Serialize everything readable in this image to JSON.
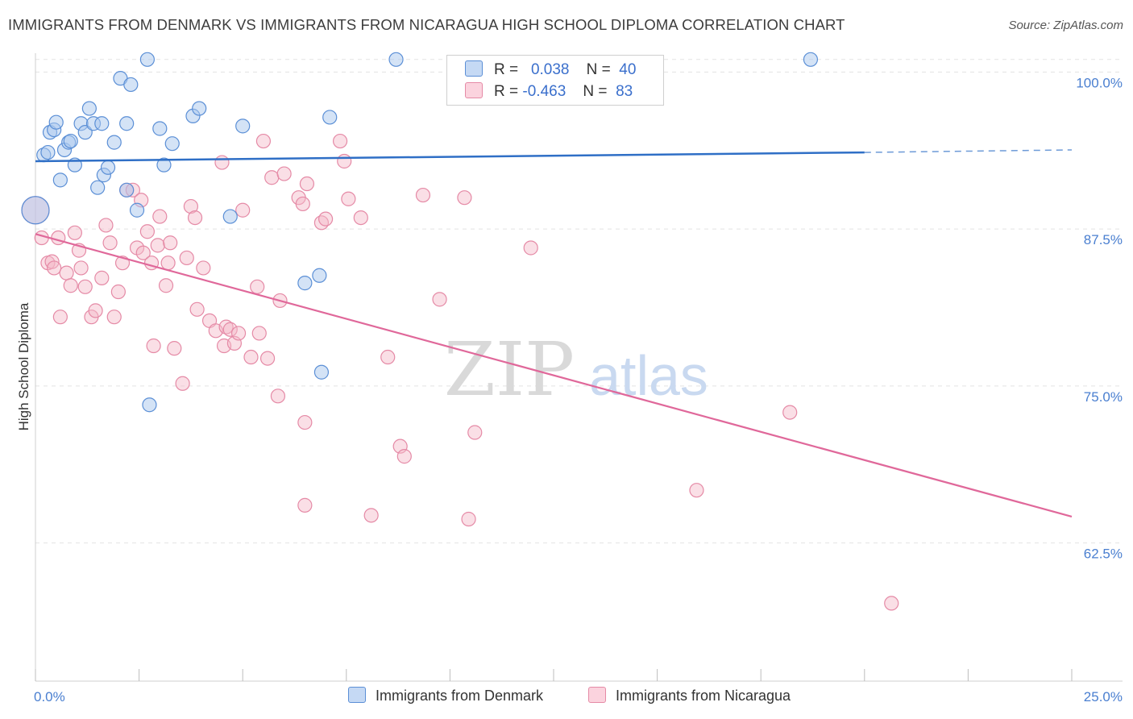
{
  "header": {
    "title": "IMMIGRANTS FROM DENMARK VS IMMIGRANTS FROM NICARAGUA HIGH SCHOOL DIPLOMA CORRELATION CHART",
    "source": "Source: ZipAtlas.com"
  },
  "watermark": {
    "zip": "ZIP",
    "atlas": "atlas"
  },
  "legend": {
    "r_label": "R =",
    "n_label": "N =",
    "rows": [
      {
        "r": "0.038",
        "n": "40",
        "color": "#a9c7ee"
      },
      {
        "r": "-0.463",
        "n": "83",
        "color": "#f5b7c8"
      }
    ]
  },
  "bottom_legend": {
    "denmark": "Immigrants from Denmark",
    "nicaragua": "Immigrants from Nicaragua"
  },
  "colors": {
    "denmark_fill": "#a9c7ee",
    "denmark_stroke": "#5b8fd6",
    "denmark_line": "#2f6fc6",
    "nicaragua_fill": "#f5b7c8",
    "nicaragua_stroke": "#e58aa6",
    "nicaragua_line": "#e0689a",
    "tick_text": "#4a7fd0",
    "grid": "#e3e3e3"
  },
  "chart_data": {
    "type": "scatter",
    "title": "IMMIGRANTS FROM DENMARK VS IMMIGRANTS FROM NICARAGUA HIGH SCHOOL DIPLOMA CORRELATION CHART",
    "xlabel": "",
    "ylabel": "High School Diploma",
    "xlim": [
      0,
      25
    ],
    "ylim": [
      51.5,
      101.5
    ],
    "x_tick_labels": [
      {
        "value": 0,
        "label": "0.0%"
      },
      {
        "value": 25,
        "label": "25.0%"
      }
    ],
    "y_ticks": [
      {
        "value": 100.0,
        "label": "100.0%"
      },
      {
        "value": 87.5,
        "label": "87.5%"
      },
      {
        "value": 75.0,
        "label": "75.0%"
      },
      {
        "value": 62.5,
        "label": "62.5%"
      }
    ],
    "grid": true,
    "legend_position": "top-center",
    "series": [
      {
        "name": "Immigrants from Denmark",
        "r": 0.038,
        "n": 40,
        "trend": {
          "x0": 0,
          "y0": 92.9,
          "x1": 20.0,
          "y1": 93.6,
          "dashed_to_x": 25,
          "dashed_to_y": 93.8
        },
        "points": [
          {
            "x": 0.0,
            "y": 89.0,
            "big": true
          },
          {
            "x": 0.2,
            "y": 93.4
          },
          {
            "x": 0.3,
            "y": 93.6
          },
          {
            "x": 0.35,
            "y": 95.2
          },
          {
            "x": 0.45,
            "y": 95.4
          },
          {
            "x": 0.5,
            "y": 96.0
          },
          {
            "x": 0.6,
            "y": 91.4
          },
          {
            "x": 0.7,
            "y": 93.8
          },
          {
            "x": 0.8,
            "y": 94.4
          },
          {
            "x": 0.85,
            "y": 94.5
          },
          {
            "x": 0.95,
            "y": 92.6
          },
          {
            "x": 1.1,
            "y": 95.9
          },
          {
            "x": 1.2,
            "y": 95.2
          },
          {
            "x": 1.3,
            "y": 97.1
          },
          {
            "x": 1.4,
            "y": 95.9
          },
          {
            "x": 1.5,
            "y": 90.8
          },
          {
            "x": 1.6,
            "y": 95.9
          },
          {
            "x": 1.65,
            "y": 91.8
          },
          {
            "x": 1.75,
            "y": 92.4
          },
          {
            "x": 1.9,
            "y": 94.4
          },
          {
            "x": 2.05,
            "y": 99.5
          },
          {
            "x": 2.2,
            "y": 95.9
          },
          {
            "x": 2.2,
            "y": 90.6
          },
          {
            "x": 2.3,
            "y": 99.0
          },
          {
            "x": 2.45,
            "y": 89.0
          },
          {
            "x": 2.7,
            "y": 101.0
          },
          {
            "x": 2.75,
            "y": 73.5
          },
          {
            "x": 3.0,
            "y": 95.5
          },
          {
            "x": 3.1,
            "y": 92.6
          },
          {
            "x": 3.3,
            "y": 94.3
          },
          {
            "x": 3.8,
            "y": 96.5
          },
          {
            "x": 3.95,
            "y": 97.1
          },
          {
            "x": 4.7,
            "y": 88.5
          },
          {
            "x": 5.0,
            "y": 95.7
          },
          {
            "x": 6.5,
            "y": 83.2
          },
          {
            "x": 6.85,
            "y": 83.8
          },
          {
            "x": 6.9,
            "y": 76.1
          },
          {
            "x": 7.1,
            "y": 96.4
          },
          {
            "x": 8.7,
            "y": 101.0
          },
          {
            "x": 18.7,
            "y": 101.0
          }
        ]
      },
      {
        "name": "Immigrants from Nicaragua",
        "r": -0.463,
        "n": 83,
        "trend": {
          "x0": 0,
          "y0": 87.1,
          "x1": 25,
          "y1": 64.6
        },
        "points": [
          {
            "x": 0.0,
            "y": 89.0,
            "big": true
          },
          {
            "x": 0.15,
            "y": 86.8
          },
          {
            "x": 0.3,
            "y": 84.8
          },
          {
            "x": 0.4,
            "y": 84.9
          },
          {
            "x": 0.45,
            "y": 84.4
          },
          {
            "x": 0.55,
            "y": 86.8
          },
          {
            "x": 0.6,
            "y": 80.5
          },
          {
            "x": 0.75,
            "y": 84.0
          },
          {
            "x": 0.85,
            "y": 83.0
          },
          {
            "x": 0.95,
            "y": 87.2
          },
          {
            "x": 1.05,
            "y": 85.8
          },
          {
            "x": 1.1,
            "y": 84.4
          },
          {
            "x": 1.2,
            "y": 82.9
          },
          {
            "x": 1.35,
            "y": 80.5
          },
          {
            "x": 1.45,
            "y": 81.0
          },
          {
            "x": 1.6,
            "y": 83.6
          },
          {
            "x": 1.7,
            "y": 87.8
          },
          {
            "x": 1.8,
            "y": 86.4
          },
          {
            "x": 1.9,
            "y": 80.5
          },
          {
            "x": 2.0,
            "y": 82.5
          },
          {
            "x": 2.1,
            "y": 84.8
          },
          {
            "x": 2.2,
            "y": 90.6
          },
          {
            "x": 2.35,
            "y": 90.6
          },
          {
            "x": 2.45,
            "y": 86.0
          },
          {
            "x": 2.55,
            "y": 89.8
          },
          {
            "x": 2.6,
            "y": 85.6
          },
          {
            "x": 2.7,
            "y": 87.3
          },
          {
            "x": 2.8,
            "y": 84.8
          },
          {
            "x": 2.85,
            "y": 78.2
          },
          {
            "x": 2.95,
            "y": 86.2
          },
          {
            "x": 3.0,
            "y": 88.5
          },
          {
            "x": 3.15,
            "y": 83.0
          },
          {
            "x": 3.2,
            "y": 84.8
          },
          {
            "x": 3.25,
            "y": 86.4
          },
          {
            "x": 3.35,
            "y": 78.0
          },
          {
            "x": 3.55,
            "y": 75.2
          },
          {
            "x": 3.65,
            "y": 85.2
          },
          {
            "x": 3.75,
            "y": 89.3
          },
          {
            "x": 3.85,
            "y": 88.4
          },
          {
            "x": 3.9,
            "y": 81.1
          },
          {
            "x": 4.05,
            "y": 84.4
          },
          {
            "x": 4.2,
            "y": 80.2
          },
          {
            "x": 4.35,
            "y": 79.4
          },
          {
            "x": 4.5,
            "y": 92.8
          },
          {
            "x": 4.55,
            "y": 78.2
          },
          {
            "x": 4.6,
            "y": 79.7
          },
          {
            "x": 4.7,
            "y": 79.5
          },
          {
            "x": 4.8,
            "y": 78.4
          },
          {
            "x": 4.9,
            "y": 79.2
          },
          {
            "x": 5.0,
            "y": 89.0
          },
          {
            "x": 5.2,
            "y": 77.3
          },
          {
            "x": 5.35,
            "y": 82.9
          },
          {
            "x": 5.4,
            "y": 79.2
          },
          {
            "x": 5.5,
            "y": 94.5
          },
          {
            "x": 5.6,
            "y": 77.2
          },
          {
            "x": 5.7,
            "y": 91.6
          },
          {
            "x": 5.85,
            "y": 74.2
          },
          {
            "x": 5.9,
            "y": 81.8
          },
          {
            "x": 6.0,
            "y": 91.9
          },
          {
            "x": 6.35,
            "y": 90.0
          },
          {
            "x": 6.45,
            "y": 89.5
          },
          {
            "x": 6.5,
            "y": 72.1
          },
          {
            "x": 6.5,
            "y": 65.5
          },
          {
            "x": 6.55,
            "y": 91.1
          },
          {
            "x": 6.9,
            "y": 88.0
          },
          {
            "x": 7.0,
            "y": 88.3
          },
          {
            "x": 7.35,
            "y": 94.5
          },
          {
            "x": 7.45,
            "y": 92.9
          },
          {
            "x": 7.55,
            "y": 89.9
          },
          {
            "x": 7.85,
            "y": 88.4
          },
          {
            "x": 8.1,
            "y": 64.7
          },
          {
            "x": 8.5,
            "y": 77.3
          },
          {
            "x": 8.8,
            "y": 70.2
          },
          {
            "x": 8.9,
            "y": 69.4
          },
          {
            "x": 9.35,
            "y": 90.2
          },
          {
            "x": 9.75,
            "y": 81.9
          },
          {
            "x": 10.35,
            "y": 90.0
          },
          {
            "x": 10.45,
            "y": 64.4
          },
          {
            "x": 10.6,
            "y": 71.3
          },
          {
            "x": 11.95,
            "y": 86.0
          },
          {
            "x": 15.95,
            "y": 66.7
          },
          {
            "x": 18.2,
            "y": 72.9
          },
          {
            "x": 20.65,
            "y": 57.7
          }
        ]
      }
    ]
  }
}
